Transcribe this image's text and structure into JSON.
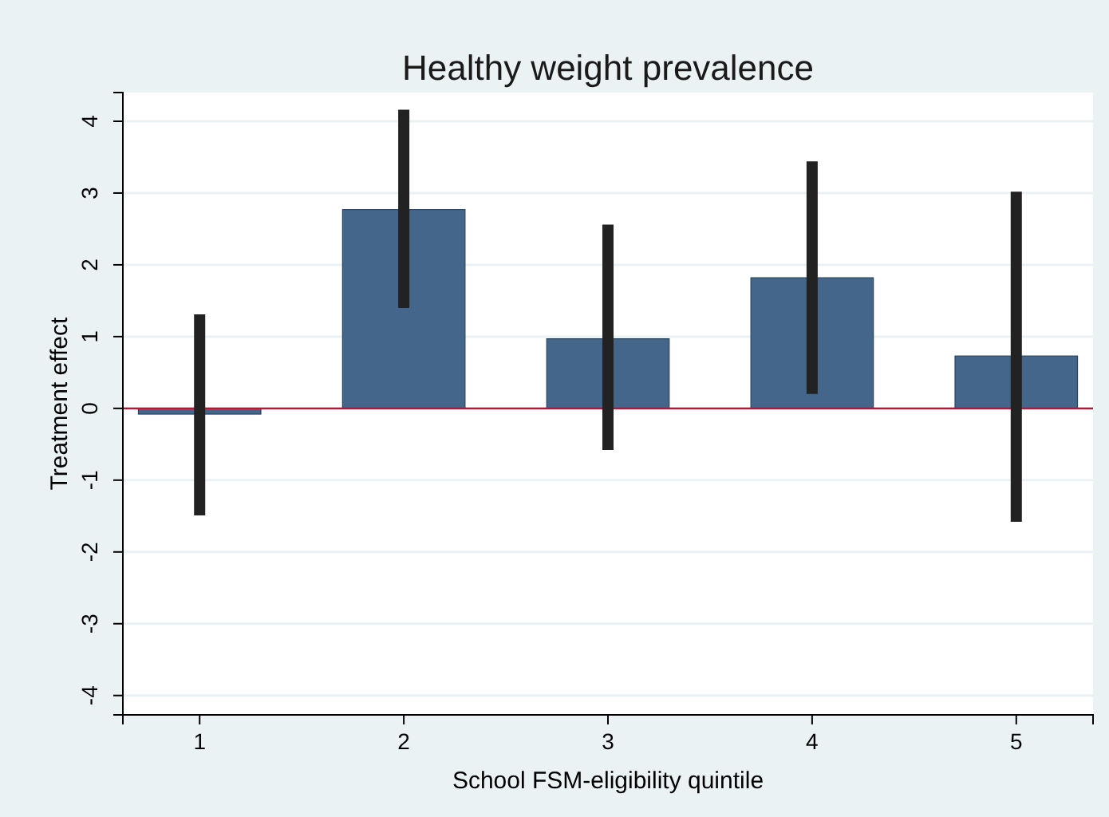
{
  "chart_data": {
    "type": "bar",
    "title": "Healthy weight prevalence",
    "xlabel": "School FSM-eligibility quintile",
    "ylabel": "Treatment effect",
    "categories": [
      "1",
      "2",
      "3",
      "4",
      "5"
    ],
    "values": [
      -0.08,
      2.77,
      0.97,
      1.82,
      0.73
    ],
    "errors": [
      [
        -1.49,
        1.31
      ],
      [
        1.4,
        4.16
      ],
      [
        -0.58,
        2.56
      ],
      [
        0.2,
        3.44
      ],
      [
        -1.58,
        3.02
      ]
    ],
    "color": "#43668a",
    "ylim": [
      -4.27,
      4.4
    ],
    "yticks": [
      -4,
      -3,
      -2,
      -1,
      0,
      1,
      2,
      3,
      4
    ],
    "grid": "y",
    "ref_lines": [
      {
        "axis": "y",
        "value": 0,
        "color": "#c8102e"
      }
    ]
  }
}
